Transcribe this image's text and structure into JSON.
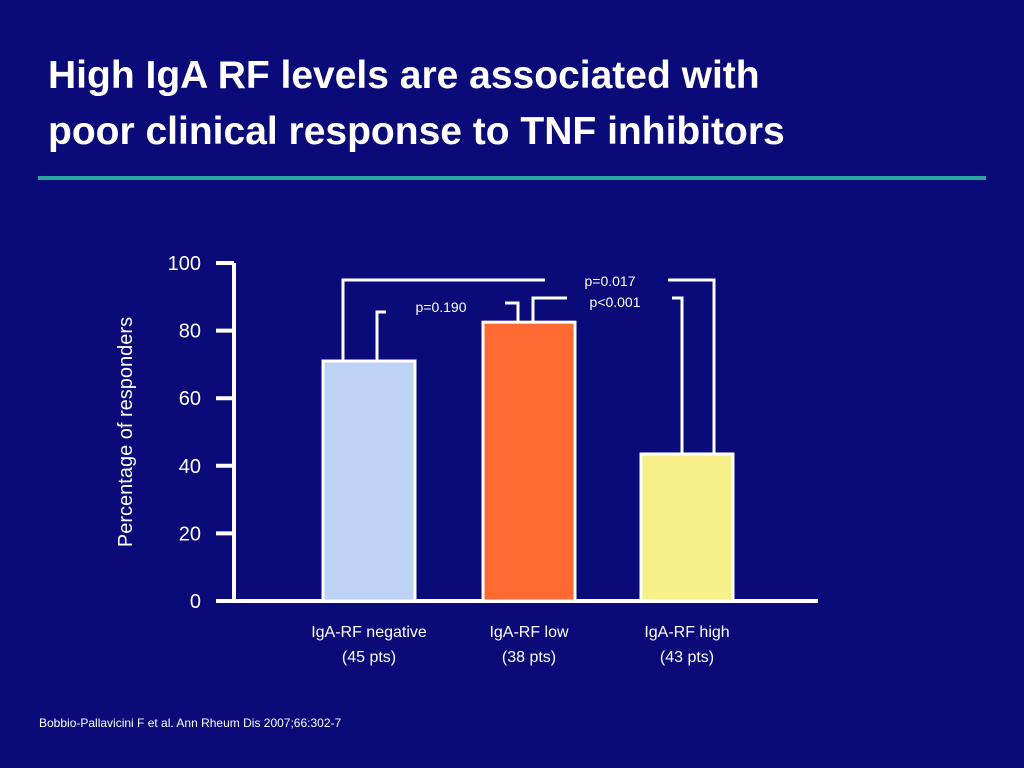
{
  "slide": {
    "title_line1": "High IgA RF levels are associated with",
    "title_line2": "poor clinical response to TNF inhibitors",
    "citation": "Bobbio-Pallavicini F et al. Ann Rheum Dis 2007;66:302-7"
  },
  "colors": {
    "background": "#0a0a78",
    "rule": "#2aa5a0",
    "axis": "#ffffff"
  },
  "chart_data": {
    "type": "bar",
    "title": "",
    "xlabel": "",
    "ylabel": "Percentage of responders",
    "ylim": [
      0,
      100
    ],
    "yticks": [
      0,
      20,
      40,
      60,
      80,
      100
    ],
    "grid": false,
    "categories": [
      {
        "line1": "IgA-RF negative",
        "line2": "(45 pts)"
      },
      {
        "line1": "IgA-RF low",
        "line2": "(38 pts)"
      },
      {
        "line1": "IgA-RF high",
        "line2": "(43 pts)"
      }
    ],
    "values": [
      71,
      82.5,
      43.5
    ],
    "bar_colors": [
      "#bcd3f5",
      "#ff6a33",
      "#f7f08a"
    ],
    "annotations": [
      {
        "text": "p=0.190",
        "between": [
          0,
          1
        ]
      },
      {
        "text": "p=0.017",
        "between": [
          0,
          2
        ]
      },
      {
        "text": "p<0.001",
        "between": [
          1,
          2
        ]
      }
    ]
  }
}
